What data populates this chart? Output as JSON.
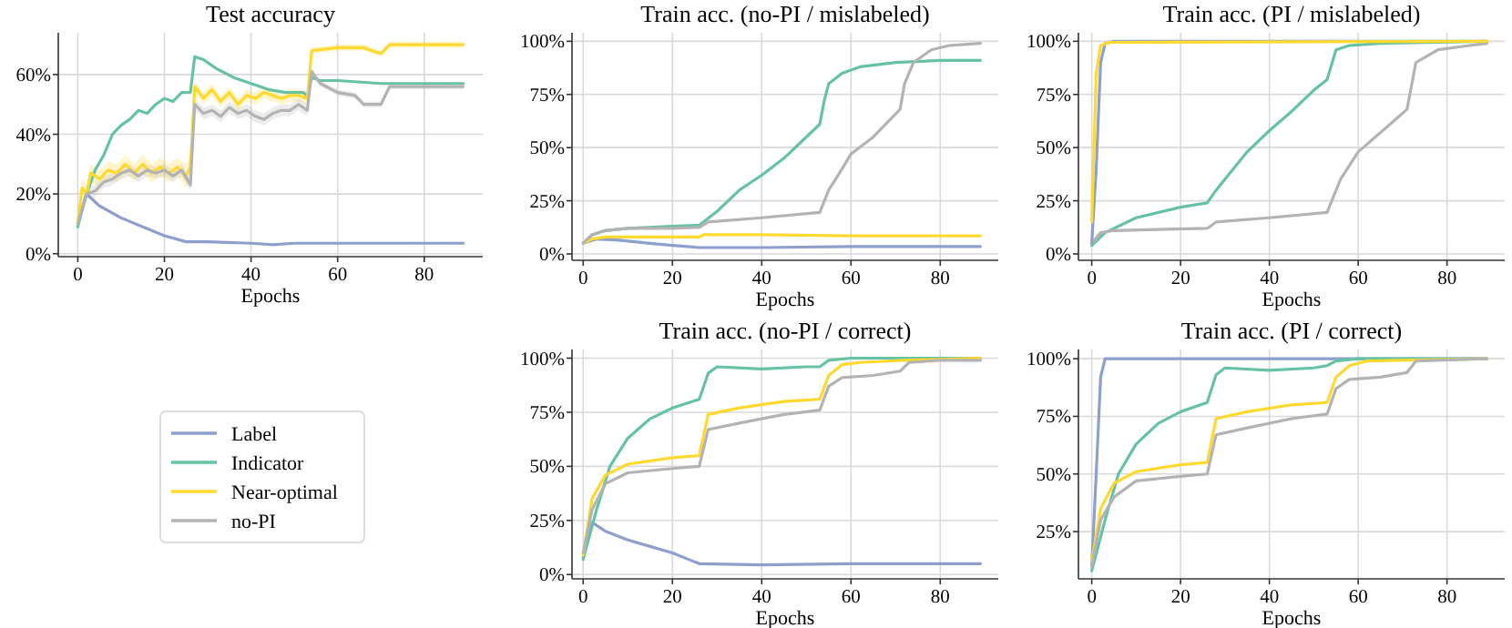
{
  "chart_data": [
    {
      "type": "line",
      "title": "Test accuracy",
      "xlabel": "Epochs",
      "xlim": [
        -4.5,
        93.5
      ],
      "ylim": [
        -1,
        74
      ],
      "xticks": [
        0,
        20,
        40,
        60,
        80
      ],
      "yticks": [
        {
          "value": 0,
          "label": "0%"
        },
        {
          "value": 20,
          "label": "20%"
        },
        {
          "value": 40,
          "label": "40%"
        },
        {
          "value": 60,
          "label": "60%"
        }
      ],
      "grid": true,
      "legend": "bottom",
      "series": [
        {
          "name": "Label",
          "color": "#8da0cb",
          "x": [
            0,
            2,
            5,
            10,
            15,
            20,
            25,
            30,
            40,
            45,
            50,
            60,
            70,
            80,
            89
          ],
          "values": [
            10,
            20,
            16,
            12,
            9,
            6,
            4,
            4,
            3.5,
            3,
            3.5,
            3.5,
            3.5,
            3.5,
            3.5
          ]
        },
        {
          "name": "Indicator",
          "color": "#66c2a5",
          "x": [
            0,
            2,
            4,
            6,
            8,
            10,
            12,
            14,
            16,
            18,
            20,
            22,
            24,
            26,
            27,
            29,
            32,
            36,
            40,
            44,
            48,
            52,
            53,
            54,
            56,
            60,
            70,
            80,
            89
          ],
          "values": [
            9,
            20,
            28,
            33,
            40,
            43,
            45,
            48,
            47,
            50,
            52,
            51,
            54,
            54,
            66,
            65,
            62,
            59,
            57,
            55,
            54,
            54,
            53,
            59,
            58,
            58,
            57,
            57,
            57
          ]
        },
        {
          "name": "Near-optimal",
          "color": "#ffd92f",
          "x": [
            0,
            1,
            2,
            3,
            5,
            7,
            9,
            11,
            13,
            15,
            17,
            19,
            21,
            23,
            25,
            26,
            27,
            29,
            31,
            33,
            35,
            37,
            39,
            41,
            43,
            45,
            47,
            49,
            51,
            53,
            54,
            60,
            66,
            70,
            72,
            80,
            89
          ],
          "values": [
            10,
            22,
            20,
            27,
            25,
            28,
            27,
            30,
            27,
            30,
            27,
            29,
            27,
            29,
            26,
            29,
            56,
            52,
            55,
            51,
            54,
            50,
            53,
            52,
            54,
            53,
            52,
            53,
            53,
            52,
            68,
            69,
            69,
            67,
            70,
            70,
            70
          ],
          "lower": [
            9,
            19,
            17,
            24,
            22,
            25,
            24,
            27,
            24,
            27,
            24,
            26,
            24,
            26,
            22,
            25,
            54,
            50,
            53,
            49,
            52,
            48,
            51,
            50,
            52,
            51,
            50,
            51,
            51,
            50,
            67,
            68,
            68,
            66,
            69,
            69,
            69
          ],
          "upper": [
            11,
            25,
            23,
            30,
            28,
            31,
            30,
            33,
            30,
            33,
            30,
            32,
            30,
            32,
            30,
            32,
            58,
            54,
            57,
            53,
            56,
            52,
            55,
            54,
            56,
            55,
            54,
            55,
            55,
            54,
            69,
            70,
            70,
            68,
            71,
            71,
            71
          ]
        },
        {
          "name": "no-PI",
          "color": "#b3b3b3",
          "x": [
            0,
            2,
            4,
            6,
            8,
            10,
            12,
            14,
            16,
            18,
            20,
            22,
            24,
            26,
            27,
            29,
            31,
            33,
            35,
            37,
            39,
            41,
            43,
            45,
            47,
            49,
            51,
            53,
            54,
            56,
            60,
            64,
            66,
            70,
            72,
            80,
            89
          ],
          "values": [
            10,
            20,
            21,
            24,
            25,
            27,
            28,
            26,
            28,
            27,
            28,
            26,
            28,
            23,
            50,
            47,
            48,
            46,
            49,
            47,
            48,
            46,
            45,
            47,
            48,
            48,
            50,
            48,
            61,
            57,
            54,
            53,
            50,
            50,
            56,
            56,
            56
          ],
          "lower": [
            9,
            18,
            19,
            22,
            23,
            25,
            26,
            24,
            26,
            25,
            26,
            24,
            26,
            21,
            48,
            45,
            46,
            44,
            47,
            45,
            46,
            44,
            43,
            45,
            46,
            46,
            48,
            46,
            60,
            56,
            53,
            52,
            49,
            49,
            55,
            55,
            55
          ],
          "upper": [
            11,
            22,
            23,
            26,
            27,
            29,
            30,
            28,
            30,
            29,
            30,
            28,
            30,
            25,
            52,
            49,
            50,
            48,
            51,
            49,
            50,
            48,
            47,
            49,
            50,
            50,
            52,
            50,
            62,
            58,
            55,
            54,
            51,
            51,
            57,
            57,
            57
          ]
        }
      ]
    },
    {
      "type": "line",
      "title": "Train acc. (no-PI / mislabeled)",
      "xlabel": "Epochs",
      "xlim": [
        -2.5,
        93
      ],
      "ylim": [
        -3,
        104
      ],
      "xticks": [
        0,
        20,
        40,
        60,
        80
      ],
      "yticks": [
        {
          "value": 0,
          "label": "0%"
        },
        {
          "value": 25,
          "label": "25%"
        },
        {
          "value": 50,
          "label": "50%"
        },
        {
          "value": 75,
          "label": "75%"
        },
        {
          "value": 100,
          "label": "100%"
        }
      ],
      "grid": true,
      "series": [
        {
          "color": "#8da0cb",
          "x": [
            0,
            3,
            8,
            15,
            20,
            26,
            40,
            60,
            89
          ],
          "values": [
            5,
            7,
            6.5,
            5,
            4,
            3,
            3,
            3.5,
            3.5
          ]
        },
        {
          "color": "#66c2a5",
          "x": [
            0,
            2,
            5,
            10,
            20,
            26,
            30,
            35,
            40,
            45,
            50,
            53,
            54,
            55,
            58,
            62,
            70,
            80,
            89
          ],
          "values": [
            5,
            9,
            11,
            12,
            13,
            13.5,
            20,
            30,
            37,
            45,
            55,
            61,
            72,
            80,
            85,
            88,
            90,
            91,
            91
          ]
        },
        {
          "color": "#ffd92f",
          "x": [
            0,
            2,
            5,
            20,
            26,
            27,
            40,
            60,
            89
          ],
          "values": [
            5,
            7,
            8,
            8,
            8,
            9,
            9,
            8.5,
            8.5
          ]
        },
        {
          "color": "#b3b3b3",
          "x": [
            0,
            2,
            5,
            10,
            20,
            26,
            28,
            40,
            53,
            55,
            58,
            60,
            65,
            71,
            72,
            74,
            78,
            82,
            89
          ],
          "values": [
            5,
            9,
            11,
            12,
            12,
            12.5,
            15,
            17,
            19.5,
            30,
            40,
            47,
            55,
            68,
            80,
            90,
            96,
            98,
            99
          ]
        }
      ]
    },
    {
      "type": "line",
      "title": "Train acc. (PI / mislabeled)",
      "xlabel": "Epochs",
      "xlim": [
        -3,
        93
      ],
      "ylim": [
        -3,
        104
      ],
      "xticks": [
        0,
        20,
        40,
        60,
        80
      ],
      "yticks": [
        {
          "value": 0,
          "label": "0%"
        },
        {
          "value": 25,
          "label": "25%"
        },
        {
          "value": 50,
          "label": "50%"
        },
        {
          "value": 75,
          "label": "75%"
        },
        {
          "value": 100,
          "label": "100%"
        }
      ],
      "grid": true,
      "series": [
        {
          "color": "#66c2a5",
          "x": [
            0,
            3,
            10,
            20,
            26,
            28,
            35,
            40,
            45,
            50,
            53,
            55,
            58,
            65,
            89
          ],
          "values": [
            4,
            10,
            17,
            22,
            24,
            30,
            48,
            58,
            67,
            77,
            82,
            96,
            98,
            99,
            100
          ]
        },
        {
          "color": "#b3b3b3",
          "x": [
            0,
            2,
            5,
            26,
            28,
            40,
            53,
            56,
            60,
            65,
            71,
            73,
            78,
            85,
            89
          ],
          "values": [
            5,
            10,
            11,
            12,
            15,
            17,
            19.5,
            35,
            48,
            57,
            68,
            90,
            96,
            98,
            99
          ]
        },
        {
          "color": "#8da0cb",
          "x": [
            0,
            1,
            2,
            3,
            5,
            89
          ],
          "values": [
            5,
            40,
            90,
            99,
            100,
            100
          ]
        },
        {
          "color": "#ffd92f",
          "x": [
            0,
            1,
            2,
            4,
            89
          ],
          "values": [
            15,
            85,
            98,
            99.5,
            100
          ]
        }
      ]
    },
    {
      "type": "line",
      "title": "Train acc. (no-PI / correct)",
      "xlabel": "Epochs",
      "xlim": [
        -2.5,
        93
      ],
      "ylim": [
        -2,
        104
      ],
      "xticks": [
        0,
        20,
        40,
        60,
        80
      ],
      "yticks": [
        {
          "value": 0,
          "label": "0%"
        },
        {
          "value": 25,
          "label": "25%"
        },
        {
          "value": 50,
          "label": "50%"
        },
        {
          "value": 75,
          "label": "75%"
        },
        {
          "value": 100,
          "label": "100%"
        }
      ],
      "grid": true,
      "series": [
        {
          "color": "#8da0cb",
          "x": [
            0,
            2,
            5,
            10,
            15,
            20,
            26,
            40,
            60,
            89
          ],
          "values": [
            8,
            24,
            20,
            16,
            13,
            10,
            5,
            4.5,
            5,
            5
          ]
        },
        {
          "color": "#66c2a5",
          "x": [
            0,
            3,
            6,
            10,
            15,
            20,
            26,
            28,
            30,
            40,
            50,
            53,
            55,
            60,
            89
          ],
          "values": [
            7,
            30,
            50,
            63,
            72,
            77,
            81,
            93,
            96,
            95,
            96,
            96,
            99,
            100,
            100
          ]
        },
        {
          "color": "#ffd92f",
          "x": [
            0,
            2,
            5,
            10,
            20,
            26,
            28,
            35,
            45,
            53,
            55,
            58,
            62,
            72,
            89
          ],
          "values": [
            9,
            35,
            46,
            51,
            54,
            55,
            74,
            77,
            80,
            81,
            92,
            97,
            98,
            99,
            100
          ]
        },
        {
          "color": "#b3b3b3",
          "x": [
            0,
            2,
            5,
            10,
            20,
            26,
            28,
            35,
            45,
            53,
            55,
            58,
            65,
            71,
            73,
            80,
            89
          ],
          "values": [
            10,
            30,
            42,
            47,
            49,
            50,
            67,
            70,
            74,
            76,
            87,
            91,
            92,
            94,
            98,
            99,
            99
          ]
        }
      ]
    },
    {
      "type": "line",
      "title": "Train acc. (PI / correct)",
      "xlabel": "Epochs",
      "xlim": [
        -3,
        93
      ],
      "ylim": [
        4.5,
        104
      ],
      "xticks": [
        0,
        20,
        40,
        60,
        80
      ],
      "yticks": [
        {
          "value": 25,
          "label": "25%"
        },
        {
          "value": 50,
          "label": "50%"
        },
        {
          "value": 75,
          "label": "75%"
        },
        {
          "value": 100,
          "label": "100%"
        }
      ],
      "grid": true,
      "series": [
        {
          "color": "#8da0cb",
          "x": [
            0,
            1,
            2,
            3,
            89
          ],
          "values": [
            10,
            50,
            92,
            100,
            100
          ]
        },
        {
          "color": "#66c2a5",
          "x": [
            0,
            3,
            6,
            10,
            15,
            20,
            26,
            28,
            30,
            40,
            50,
            53,
            55,
            60,
            89
          ],
          "values": [
            8,
            30,
            50,
            63,
            72,
            77,
            81,
            93,
            96,
            95,
            96,
            97,
            99,
            100,
            100
          ]
        },
        {
          "color": "#ffd92f",
          "x": [
            0,
            2,
            5,
            10,
            20,
            26,
            28,
            35,
            45,
            53,
            55,
            58,
            62,
            89
          ],
          "values": [
            12,
            35,
            46,
            51,
            54,
            55,
            74,
            77,
            80,
            81,
            92,
            97,
            99,
            100
          ]
        },
        {
          "color": "#b3b3b3",
          "x": [
            0,
            2,
            5,
            10,
            20,
            26,
            28,
            35,
            45,
            53,
            55,
            58,
            65,
            71,
            73,
            89
          ],
          "values": [
            10,
            30,
            40,
            47,
            49,
            50,
            67,
            70,
            74,
            76,
            87,
            91,
            92,
            94,
            99,
            100
          ]
        }
      ]
    }
  ]
}
